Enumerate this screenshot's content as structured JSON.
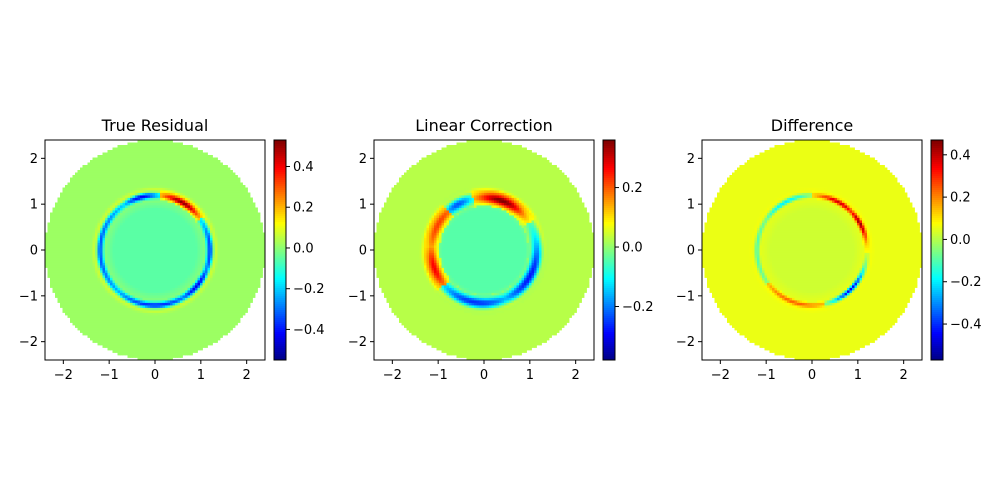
{
  "chart_data": [
    {
      "type": "heatmap",
      "title": "True Residual",
      "colormap": "jet",
      "domain": "disk",
      "disk_radius": 2.4,
      "xlim": [
        -2.4,
        2.4
      ],
      "ylim": [
        -2.4,
        2.4
      ],
      "x_ticks": [
        -2,
        -1,
        0,
        1,
        2
      ],
      "y_ticks": [
        -2,
        -1,
        0,
        1,
        2
      ],
      "x_tick_labels": [
        "−2",
        "−1",
        "0",
        "1",
        "2"
      ],
      "y_tick_labels": [
        "−2",
        "−1",
        "0",
        "1",
        "2"
      ],
      "colorbar": {
        "min": -0.55,
        "max": 0.53,
        "ticks": [
          0.4,
          0.2,
          0.0,
          -0.2,
          -0.4
        ],
        "tick_labels": [
          "0.4",
          "0.2",
          "0.0",
          "−0.2",
          "−0.4"
        ]
      },
      "background_value": 0.02,
      "ring": {
        "radius": 1.2,
        "width": 0.07,
        "features": [
          {
            "angle_deg": 60,
            "spread_deg": 25,
            "value": 0.5
          },
          {
            "angle_deg": 105,
            "spread_deg": 22,
            "value": -0.45
          },
          {
            "angle_deg": 180,
            "spread_deg": 80,
            "value": -0.35
          },
          {
            "angle_deg": 270,
            "spread_deg": 60,
            "value": -0.4
          },
          {
            "angle_deg": 0,
            "spread_deg": 40,
            "value": -0.38
          },
          {
            "angle_deg": 320,
            "spread_deg": 30,
            "value": -0.45
          }
        ]
      },
      "outer_halo": {
        "radius": 1.3,
        "width": 0.06,
        "value": 0.15
      },
      "inner_value": -0.05
    },
    {
      "type": "heatmap",
      "title": "Linear Correction",
      "colormap": "jet",
      "domain": "disk",
      "disk_radius": 2.4,
      "xlim": [
        -2.4,
        2.4
      ],
      "ylim": [
        -2.4,
        2.4
      ],
      "x_ticks": [
        -2,
        -1,
        0,
        1,
        2
      ],
      "y_ticks": [
        -2,
        -1,
        0,
        1,
        2
      ],
      "x_tick_labels": [
        "−2",
        "−1",
        "0",
        "1",
        "2"
      ],
      "y_tick_labels": [
        "−2",
        "−1",
        "0",
        "1",
        "2"
      ],
      "colorbar": {
        "min": -0.38,
        "max": 0.36,
        "ticks": [
          0.2,
          0.0,
          -0.2
        ],
        "tick_labels": [
          "0.2",
          "0.0",
          "−0.2"
        ]
      },
      "background_value": 0.03,
      "ring": {
        "radius": 1.15,
        "width": 0.12,
        "features": [
          {
            "angle_deg": 70,
            "spread_deg": 30,
            "value": 0.34
          },
          {
            "angle_deg": 150,
            "spread_deg": 40,
            "value": 0.2
          },
          {
            "angle_deg": 200,
            "spread_deg": 30,
            "value": 0.25
          },
          {
            "angle_deg": 260,
            "spread_deg": 50,
            "value": -0.28
          },
          {
            "angle_deg": 330,
            "spread_deg": 50,
            "value": -0.3
          },
          {
            "angle_deg": 120,
            "spread_deg": 20,
            "value": -0.25
          }
        ]
      },
      "outer_halo": {
        "radius": 1.3,
        "width": 0.05,
        "value": 0.08
      },
      "inner_value": -0.04
    },
    {
      "type": "heatmap",
      "title": "Difference",
      "colormap": "jet",
      "domain": "disk",
      "disk_radius": 2.4,
      "xlim": [
        -2.4,
        2.4
      ],
      "ylim": [
        -2.4,
        2.4
      ],
      "x_ticks": [
        -2,
        -1,
        0,
        1,
        2
      ],
      "y_ticks": [
        -2,
        -1,
        0,
        1,
        2
      ],
      "x_tick_labels": [
        "−2",
        "−1",
        "0",
        "1",
        "2"
      ],
      "y_tick_labels": [
        "−2",
        "−1",
        "0",
        "1",
        "2"
      ],
      "colorbar": {
        "min": -0.57,
        "max": 0.47,
        "ticks": [
          0.4,
          0.2,
          0.0,
          -0.2,
          -0.4
        ],
        "tick_labels": [
          "0.4",
          "0.2",
          "0.0",
          "−0.2",
          "−0.4"
        ]
      },
      "background_value": 0.06,
      "ring": {
        "radius": 1.2,
        "width": 0.05,
        "features": [
          {
            "angle_deg": 60,
            "spread_deg": 25,
            "value": 0.35
          },
          {
            "angle_deg": 120,
            "spread_deg": 30,
            "value": -0.25
          },
          {
            "angle_deg": 30,
            "spread_deg": 20,
            "value": 0.4
          },
          {
            "angle_deg": 315,
            "spread_deg": 25,
            "value": -0.5
          },
          {
            "angle_deg": 180,
            "spread_deg": 60,
            "value": -0.15
          },
          {
            "angle_deg": 250,
            "spread_deg": 40,
            "value": 0.2
          }
        ]
      },
      "outer_halo": {
        "radius": 1.3,
        "width": 0.04,
        "value": 0.02
      },
      "inner_value": 0.03
    }
  ]
}
